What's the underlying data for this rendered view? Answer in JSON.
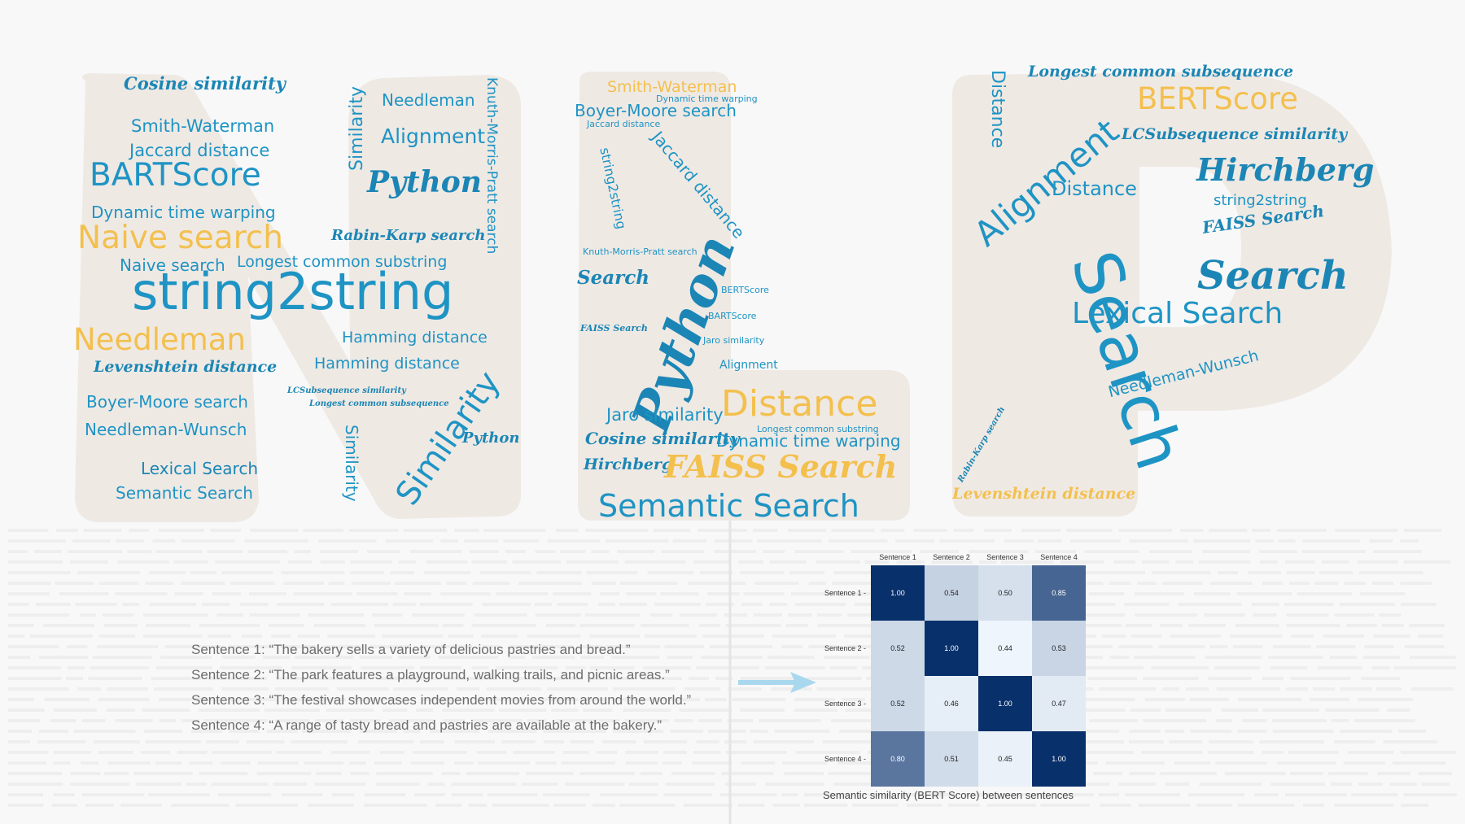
{
  "background": {
    "letters": [
      "N",
      "L",
      "P"
    ],
    "letter_color": "#efe9e4",
    "page_color": "#f8f8f8"
  },
  "word_cloud": {
    "colors": {
      "blue": "#1e94c4",
      "gold": "#f3c04e"
    },
    "n": [
      "Cosine similarity",
      "Smith-Waterman",
      "Jaccard distance",
      "BARTScore",
      "Dynamic time warping",
      "Naive search",
      "Naive search",
      "string2string",
      "Needleman",
      "Levenshtein distance",
      "Boyer-Moore search",
      "Needleman-Wunsch",
      "Lexical Search",
      "Semantic Search",
      "Similarity",
      "Needleman",
      "Alignment",
      "Knuth-Morris-Pratt search",
      "Python",
      "Rabin-Karp search",
      "Longest common substring",
      "Hamming distance",
      "Hamming distance",
      "LCSubsequence similarity",
      "Longest common subsequence",
      "Similarity",
      "Similarity",
      "Python"
    ],
    "l": [
      "Smith-Waterman",
      "Dynamic time warping",
      "Boyer-Moore search",
      "Jaccard distance",
      "string2string",
      "Jaccard distance",
      "Knuth-Morris-Pratt search",
      "Search",
      "Python",
      "BERTScore",
      "BARTScore",
      "FAISS Search",
      "Jaro similarity",
      "Alignment",
      "Distance",
      "Jaro similarity",
      "Longest common substring",
      "Cosine similarity",
      "Dynamic time warping",
      "Hirchberg",
      "FAISS Search",
      "Semantic Search"
    ],
    "p": [
      "Longest common subsequence",
      "Distance",
      "BERTScore",
      "Alignment",
      "LCSubsequence similarity",
      "Distance",
      "Hirchberg",
      "string2string",
      "FAISS Search",
      "Search",
      "Search",
      "Lexical Search",
      "Needleman-Wunsch",
      "Rabin-Karp search",
      "Levenshtein distance"
    ]
  },
  "sentences": [
    "Sentence 1: “The bakery sells a variety of delicious pastries and bread.”",
    "Sentence 2: “The park features a playground, walking trails, and picnic areas.”",
    "Sentence 3: “The festival showcases independent movies from around the world.”",
    "Sentence 4: “A range of tasty bread and pastries are available at the bakery.”"
  ],
  "arrow_color": "#a9d8ee",
  "chart_data": {
    "type": "heatmap",
    "title": "Semantic similarity (BERT Score) between sentences",
    "x_labels": [
      "Sentence 1",
      "Sentence 2",
      "Sentence 3",
      "Sentence 4"
    ],
    "y_labels": [
      "Sentence 1",
      "Sentence 2",
      "Sentence 3",
      "Sentence 4"
    ],
    "values": [
      [
        1.0,
        0.54,
        0.5,
        0.85
      ],
      [
        0.52,
        1.0,
        0.44,
        0.53
      ],
      [
        0.52,
        0.46,
        1.0,
        0.47
      ],
      [
        0.8,
        0.51,
        0.45,
        1.0
      ]
    ],
    "value_range": [
      0.44,
      1.0
    ],
    "colormap": "Blues",
    "colorbar": false
  }
}
